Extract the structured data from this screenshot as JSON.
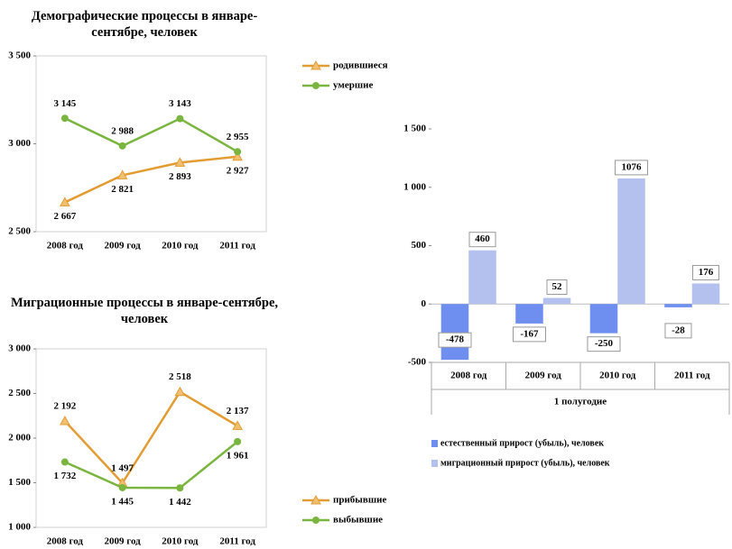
{
  "chart_data": [
    {
      "type": "line",
      "title": "Демографические процессы в январе-сентябре, человек",
      "categories": [
        "2008 год",
        "2009 год",
        "2010 год",
        "2011 год"
      ],
      "series": [
        {
          "name": "родившиеся",
          "color": "#e39c34",
          "marker": "triangle",
          "values": [
            2667,
            2821,
            2893,
            2927
          ],
          "value_labels": [
            "2 667",
            "2 821",
            "2 893",
            "2 927"
          ]
        },
        {
          "name": "умершие",
          "color": "#7ab540",
          "marker": "circle",
          "values": [
            3145,
            2988,
            3143,
            2955
          ],
          "value_labels": [
            "3 145",
            "2 988",
            "3 143",
            "2 955"
          ]
        }
      ],
      "ylim": [
        2500,
        3500
      ],
      "yticks": [
        {
          "value": 2500,
          "label": "2 500"
        },
        {
          "value": 3000,
          "label": "3 000"
        },
        {
          "value": 3500,
          "label": "3 500"
        }
      ],
      "legend": "right"
    },
    {
      "type": "line",
      "title": "Миграционные процессы в январе-сентябре, человек",
      "categories": [
        "2008 год",
        "2009 год",
        "2010 год",
        "2011 год"
      ],
      "series": [
        {
          "name": "прибывшие",
          "color": "#e39c34",
          "marker": "triangle",
          "values": [
            2192,
            1497,
            2518,
            2137
          ],
          "value_labels": [
            "2 192",
            "1 497",
            "2 518",
            "2 137"
          ]
        },
        {
          "name": "выбывшие",
          "color": "#7ab540",
          "marker": "circle",
          "values": [
            1732,
            1445,
            1442,
            1961
          ],
          "value_labels": [
            "1 732",
            "1 445",
            "1 442",
            "1 961"
          ]
        }
      ],
      "ylim": [
        1000,
        3000
      ],
      "yticks": [
        {
          "value": 1000,
          "label": "1 000"
        },
        {
          "value": 1500,
          "label": "1 500"
        },
        {
          "value": 2000,
          "label": "2 000"
        },
        {
          "value": 2500,
          "label": "2 500"
        },
        {
          "value": 3000,
          "label": "3 000"
        }
      ],
      "legend": "right"
    },
    {
      "type": "bar",
      "xlabel": "1 полугодие",
      "categories": [
        "2008 год",
        "2009 год",
        "2010 год",
        "2011 год"
      ],
      "series": [
        {
          "name": "естественный прирост (убыль), человек",
          "color": "#6f8ff0",
          "values": [
            -478,
            -167,
            -250,
            -28
          ]
        },
        {
          "name": "миграционный прирост (убыль), человек",
          "color": "#b4c0ee",
          "values": [
            460,
            52,
            1076,
            176
          ]
        }
      ],
      "ylim": [
        -500,
        1500
      ],
      "yticks": [
        -500,
        0,
        500,
        {
          "value": 1000,
          "label": "1 000"
        },
        {
          "value": 1500,
          "label": "1 500"
        }
      ],
      "legend": "bottom"
    }
  ]
}
